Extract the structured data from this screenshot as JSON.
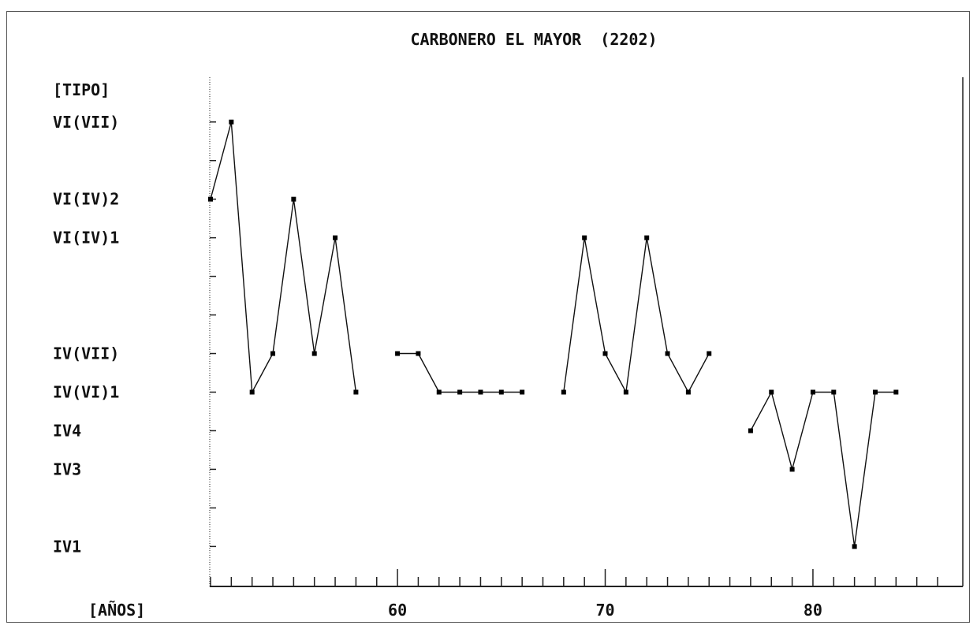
{
  "chart_data": {
    "type": "line",
    "title": "CARBONERO EL MAYOR  (2202)",
    "ylabel": "[TIPO]",
    "xlabel": "[AÑOS]",
    "y_categories": [
      "IV1",
      "",
      "IV3",
      "IV4",
      "IV(VI)1",
      "IV(VII)",
      "",
      "",
      "VI(IV)1",
      "VI(IV)2",
      "",
      "VI(VII)"
    ],
    "x_ticks": [
      60,
      70,
      80
    ],
    "xlim": [
      51,
      86
    ],
    "ylim": [
      -1.3,
      12.2
    ],
    "grid": false,
    "segments": [
      [
        [
          51,
          9
        ],
        [
          52,
          11
        ],
        [
          53,
          4
        ],
        [
          54,
          5
        ],
        [
          55,
          9
        ],
        [
          56,
          5
        ],
        [
          57,
          8
        ],
        [
          58,
          4
        ]
      ],
      [
        [
          60,
          5
        ],
        [
          61,
          5
        ],
        [
          62,
          4
        ],
        [
          63,
          4
        ],
        [
          64,
          4
        ],
        [
          65,
          4
        ],
        [
          66,
          4
        ]
      ],
      [
        [
          68,
          4
        ],
        [
          69,
          8
        ],
        [
          70,
          5
        ],
        [
          71,
          4
        ],
        [
          72,
          8
        ],
        [
          73,
          5
        ],
        [
          74,
          4
        ],
        [
          75,
          5
        ]
      ],
      [
        [
          77,
          3
        ],
        [
          78,
          4
        ],
        [
          79,
          2
        ],
        [
          80,
          4
        ],
        [
          81,
          4
        ],
        [
          82,
          0
        ],
        [
          83,
          4
        ],
        [
          84,
          4
        ]
      ]
    ]
  }
}
